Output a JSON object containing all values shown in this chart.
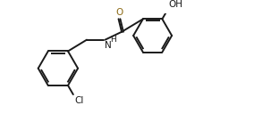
{
  "bg_color": "#ffffff",
  "line_color": "#1a1a1a",
  "atom_label_color_O": "#8B6914",
  "line_width": 1.4,
  "figsize": [
    2.84,
    1.37
  ],
  "dpi": 100,
  "xlim": [
    0,
    10.5
  ],
  "ylim": [
    0,
    5.2
  ]
}
